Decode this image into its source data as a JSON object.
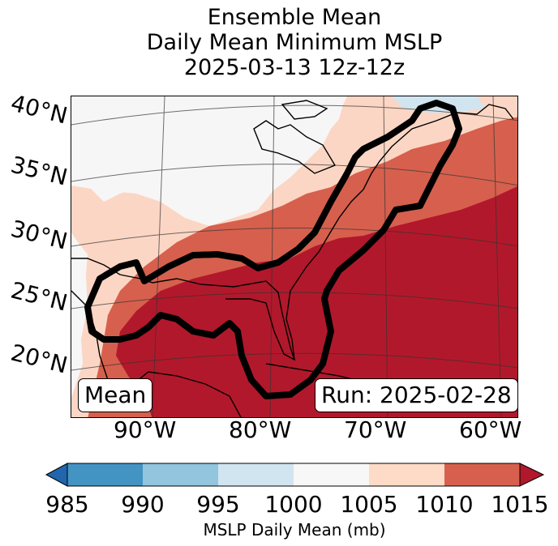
{
  "title": {
    "line1": "Ensemble Mean",
    "line2": "Daily Mean Minimum MSLP",
    "line3": "2025-03-13 12z-12z"
  },
  "map": {
    "lat_labels": [
      "40°N",
      "35°N",
      "30°N",
      "25°N",
      "20°N"
    ],
    "lon_labels": [
      "90°W",
      "80°W",
      "70°W",
      "60°W"
    ],
    "mean_badge": "Mean",
    "run_badge": "Run: 2025-02-28",
    "fill_colors": {
      "1000_1005": "#f7f7f7",
      "1005_1010": "#fcd6c4",
      "1010_1015": "#d6604d",
      "gt_1015": "#b2182b",
      "995_1000": "#d1e5f0"
    },
    "contour_color": "#000000"
  },
  "colorbar": {
    "ticks": [
      "985",
      "990",
      "995",
      "1000",
      "1005",
      "1010",
      "1015"
    ],
    "colors": [
      "#2166ac",
      "#4393c3",
      "#92c5de",
      "#d1e5f0",
      "#f7f7f7",
      "#fddbc7",
      "#d6604d",
      "#b2182b"
    ],
    "label": "MSLP Daily Mean (mb)"
  }
}
